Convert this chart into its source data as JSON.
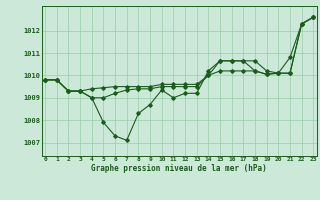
{
  "title": "Graphe pression niveau de la mer (hPa)",
  "bg_color": "#cce8d8",
  "line_color": "#1a5c1a",
  "grid_color": "#99ccaa",
  "x_ticks": [
    0,
    1,
    2,
    3,
    4,
    5,
    6,
    7,
    8,
    9,
    10,
    11,
    12,
    13,
    14,
    15,
    16,
    17,
    18,
    19,
    20,
    21,
    22,
    23
  ],
  "y_ticks": [
    1007,
    1008,
    1009,
    1010,
    1011,
    1012
  ],
  "ylim": [
    1006.4,
    1013.1
  ],
  "xlim": [
    -0.3,
    23.3
  ],
  "series": [
    [
      1009.8,
      1009.8,
      1009.3,
      1009.3,
      1009.0,
      1007.9,
      1007.3,
      1007.1,
      1008.3,
      1008.7,
      1009.35,
      1009.0,
      1009.2,
      1009.2,
      1010.2,
      1010.65,
      1010.65,
      1010.65,
      1010.2,
      1010.05,
      1010.1,
      1010.1,
      1012.3,
      1012.6
    ],
    [
      1009.8,
      1009.8,
      1009.3,
      1009.3,
      1009.4,
      1009.45,
      1009.5,
      1009.5,
      1009.5,
      1009.5,
      1009.6,
      1009.6,
      1009.6,
      1009.6,
      1010.0,
      1010.65,
      1010.65,
      1010.65,
      1010.65,
      1010.2,
      1010.1,
      1010.8,
      1012.3,
      1012.6
    ],
    [
      1009.8,
      1009.8,
      1009.3,
      1009.3,
      1009.0,
      1009.0,
      1009.2,
      1009.35,
      1009.4,
      1009.4,
      1009.5,
      1009.5,
      1009.5,
      1009.5,
      1010.0,
      1010.2,
      1010.2,
      1010.2,
      1010.2,
      1010.05,
      1010.1,
      1010.1,
      1012.3,
      1012.6
    ]
  ]
}
